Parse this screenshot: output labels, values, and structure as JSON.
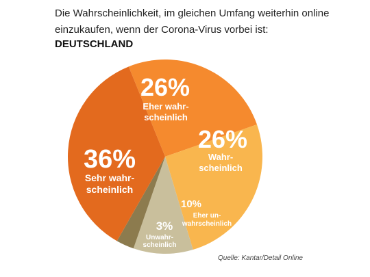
{
  "chart_data": {
    "type": "pie",
    "title": "Die Wahrscheinlichkeit, im gleichen Umfang weiterhin online einzukaufen, wenn der Corona-Virus vorbei ist:",
    "subtitle": "DEUTSCHLAND",
    "source": "Quelle: Kantar/Detail Online",
    "unit": "%",
    "slices": [
      {
        "label_lines": [
          "Eher wahr-",
          "scheinlich"
        ],
        "value": 26,
        "display": "26%",
        "color": "#f58a2e"
      },
      {
        "label_lines": [
          "Wahr-",
          "scheinlich"
        ],
        "value": 26,
        "display": "26%",
        "color": "#f9b64e"
      },
      {
        "label_lines": [
          "Eher un-",
          "wahrscheinlich"
        ],
        "value": 10,
        "display": "10%",
        "color": "#c9bf9c"
      },
      {
        "label_lines": [
          "Unwahr-",
          "scheinlich"
        ],
        "value": 3,
        "display": "3%",
        "color": "#8c7b4e"
      },
      {
        "label_lines": [
          "Sehr wahr-",
          "scheinlich"
        ],
        "value": 36,
        "display": "36%",
        "color": "#e36a1e"
      }
    ]
  }
}
